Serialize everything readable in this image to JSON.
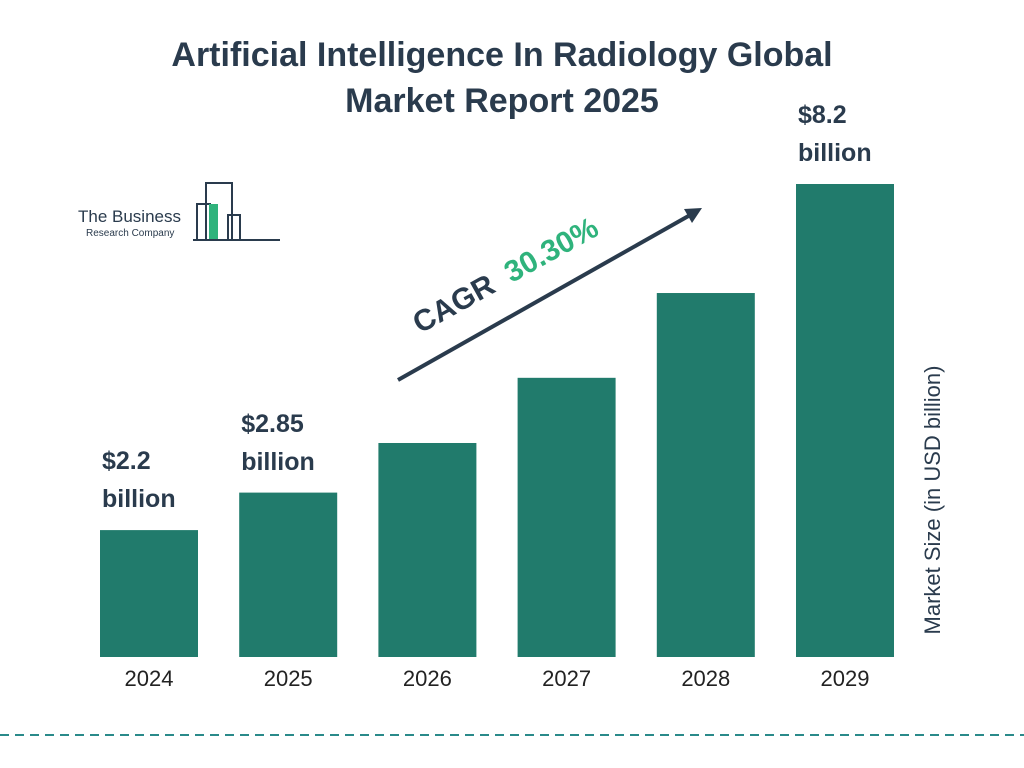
{
  "chart_data": {
    "type": "bar",
    "title": "Artificial Intelligence In Radiology Global Market Report 2025",
    "categories": [
      "2024",
      "2025",
      "2026",
      "2027",
      "2028",
      "2029"
    ],
    "values": [
      2.2,
      2.85,
      3.71,
      4.84,
      6.31,
      8.2
    ],
    "value_labels": [
      "$2.2 billion",
      "$2.85 billion",
      null,
      null,
      null,
      "$8.2 billion"
    ],
    "color": "#217b6c",
    "ylim": [
      0,
      8.2
    ],
    "y_axis_label": "Market Size (in USD billion)",
    "cagr_label": "CAGR",
    "cagr_value": "30.30%"
  },
  "logo": {
    "line1": "The Business",
    "line2": "Research Company"
  }
}
